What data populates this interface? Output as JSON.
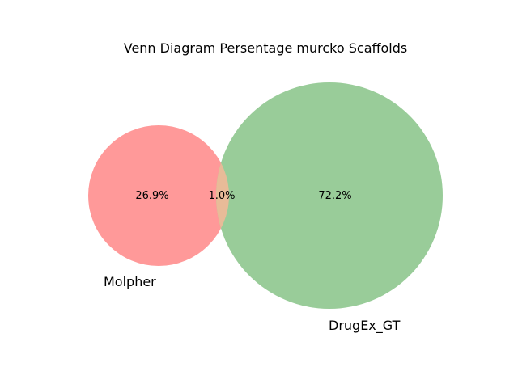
{
  "title": "Venn Diagram Persentage murcko Scaffolds",
  "sets": [
    {
      "name": "Molpher",
      "color": "#ff9999"
    },
    {
      "name": "DrugEx_GT",
      "color": "#99cc99"
    }
  ],
  "intersection_color": "#e8bb98",
  "regions": {
    "only_a": "26.9%",
    "overlap": "1.0%",
    "only_b": "72.2%"
  }
}
